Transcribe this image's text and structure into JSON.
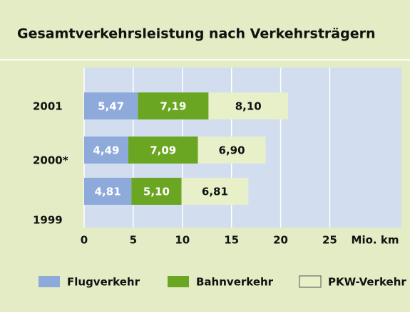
{
  "chart_data": {
    "type": "stacked-bar-horizontal",
    "title": "Gesamtverkehrsleistung nach Verkehrsträgern",
    "categories": [
      "2001",
      "2000*",
      "1999"
    ],
    "series": [
      {
        "name": "Flugverkehr",
        "color": "#8eaadb",
        "values": [
          5.47,
          4.49,
          4.81
        ],
        "value_labels": [
          "5,47",
          "4,49",
          "4,81"
        ]
      },
      {
        "name": "Bahnverkehr",
        "color": "#6aa621",
        "values": [
          7.19,
          7.09,
          5.1
        ],
        "value_labels": [
          "7,19",
          "7,09",
          "5,10"
        ]
      },
      {
        "name": "PKW-Verkehr",
        "color": "#e7f0c9",
        "values": [
          8.1,
          6.9,
          6.81
        ],
        "value_labels": [
          "8,10",
          "6,90",
          "6,81"
        ]
      }
    ],
    "xlabel": "Mio. km",
    "xlim": [
      0,
      32.3
    ],
    "xticks": [
      0,
      5,
      10,
      15,
      20,
      25
    ],
    "grid": true
  }
}
